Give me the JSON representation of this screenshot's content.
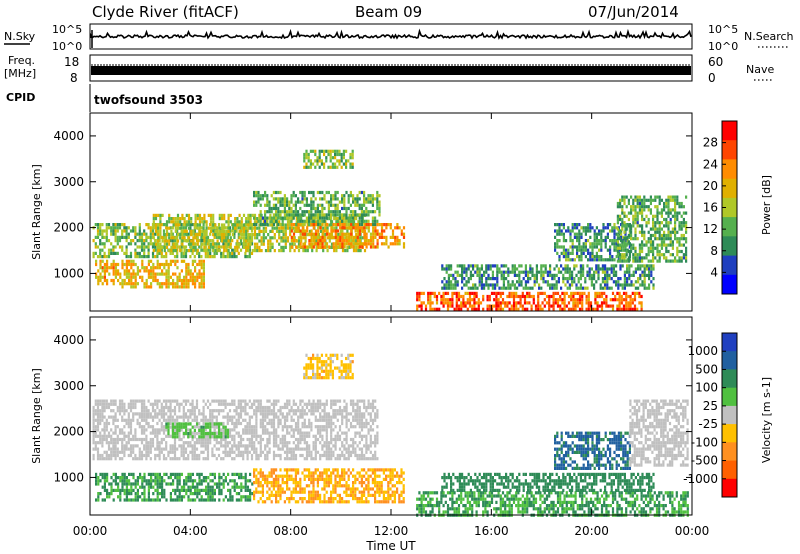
{
  "header": {
    "station": "Clyde River (fitACF)",
    "beam": "Beam 09",
    "date": "07/Jun/2014"
  },
  "strips": {
    "nsky_label": "N.Sky",
    "nsky_ticks": [
      "10^5",
      "10^0"
    ],
    "nsearch_label": "N.Search",
    "freq_label_line1": "Freq.",
    "freq_label_line2": "[MHz]",
    "freq_ticks": [
      "18",
      "8"
    ],
    "nave_label": "Nave",
    "nave_ticks": [
      "60",
      "0"
    ],
    "cpid_label": "CPID",
    "cpid_value": "twofsound 3503"
  },
  "colors": {
    "power_scale": [
      "#0000ff",
      "#1f3fbf",
      "#2e8b57",
      "#55b04e",
      "#b0c828",
      "#e0b000",
      "#ff8c00",
      "#ff4500",
      "#ff0000"
    ],
    "velocity_scale": [
      "#2040c0",
      "#2060a0",
      "#2e8b57",
      "#50c040",
      "#c0c0c0",
      "#ffc000",
      "#ff9020",
      "#ff6000",
      "#ff0000"
    ]
  },
  "chart_data": [
    {
      "type": "heatmap",
      "panel": "power",
      "xlabel": "",
      "ylabel": "Slant Range [km]",
      "xlim": [
        "00:00",
        "24:00"
      ],
      "ylim": [
        180,
        4500
      ],
      "y_ticks": [
        "1000",
        "2000",
        "3000",
        "4000"
      ],
      "colorbar_label": "Power [dB]",
      "colorbar_ticks": [
        "4",
        "8",
        "12",
        "16",
        "20",
        "24",
        "28"
      ],
      "colorbar_range": [
        0,
        32
      ],
      "regions": [
        {
          "t0": 0.1,
          "t1": 6.5,
          "r0": 1400,
          "r1": 2100,
          "value": 14
        },
        {
          "t0": 0.2,
          "t1": 4.5,
          "r0": 700,
          "r1": 1300,
          "value": 20
        },
        {
          "t0": 2.5,
          "t1": 11.0,
          "r0": 1500,
          "r1": 2300,
          "value": 16
        },
        {
          "t0": 6.5,
          "t1": 11.5,
          "r0": 2100,
          "r1": 2800,
          "value": 12
        },
        {
          "t0": 8.5,
          "t1": 10.5,
          "r0": 3300,
          "r1": 3700,
          "value": 14
        },
        {
          "t0": 8.0,
          "t1": 12.5,
          "r0": 1600,
          "r1": 2100,
          "value": 22
        },
        {
          "t0": 13.0,
          "t1": 22.0,
          "r0": 200,
          "r1": 600,
          "value": 26
        },
        {
          "t0": 14.0,
          "t1": 22.5,
          "r0": 700,
          "r1": 1200,
          "value": 10
        },
        {
          "t0": 18.5,
          "t1": 21.5,
          "r0": 1300,
          "r1": 2100,
          "value": 10
        },
        {
          "t0": 21.0,
          "t1": 23.8,
          "r0": 1300,
          "r1": 2700,
          "value": 12
        }
      ]
    },
    {
      "type": "heatmap",
      "panel": "velocity",
      "xlabel": "Time UT",
      "ylabel": "Slant Range [km]",
      "xlim": [
        "00:00",
        "24:00"
      ],
      "x_ticks": [
        "00:00",
        "04:00",
        "08:00",
        "12:00",
        "16:00",
        "20:00",
        "00:00"
      ],
      "ylim": [
        180,
        4500
      ],
      "y_ticks": [
        "1000",
        "2000",
        "3000",
        "4000"
      ],
      "colorbar_label": "Velocity [m s-1]",
      "colorbar_ticks": [
        "1000",
        "500",
        "100",
        "25",
        "-25",
        "-100",
        "-500",
        "-1000"
      ],
      "colorbar_range": [
        -1000,
        1000
      ],
      "regions": [
        {
          "t0": 0.1,
          "t1": 11.5,
          "r0": 1400,
          "r1": 2700,
          "value": 0
        },
        {
          "t0": 0.2,
          "t1": 6.5,
          "r0": 500,
          "r1": 1100,
          "value": 120
        },
        {
          "t0": 3.0,
          "t1": 5.5,
          "r0": 1900,
          "r1": 2200,
          "value": 60
        },
        {
          "t0": 6.5,
          "t1": 12.5,
          "r0": 500,
          "r1": 1200,
          "value": -90
        },
        {
          "t0": 8.5,
          "t1": 10.5,
          "r0": 3200,
          "r1": 3700,
          "value": -60
        },
        {
          "t0": 13.0,
          "t1": 23.8,
          "r0": 200,
          "r1": 700,
          "value": 110
        },
        {
          "t0": 14.0,
          "t1": 22.5,
          "r0": 700,
          "r1": 1100,
          "value": 200
        },
        {
          "t0": 18.5,
          "t1": 21.5,
          "r0": 1200,
          "r1": 2000,
          "value": 600
        },
        {
          "t0": 21.5,
          "t1": 23.8,
          "r0": 1300,
          "r1": 2700,
          "value": 0
        }
      ]
    }
  ]
}
